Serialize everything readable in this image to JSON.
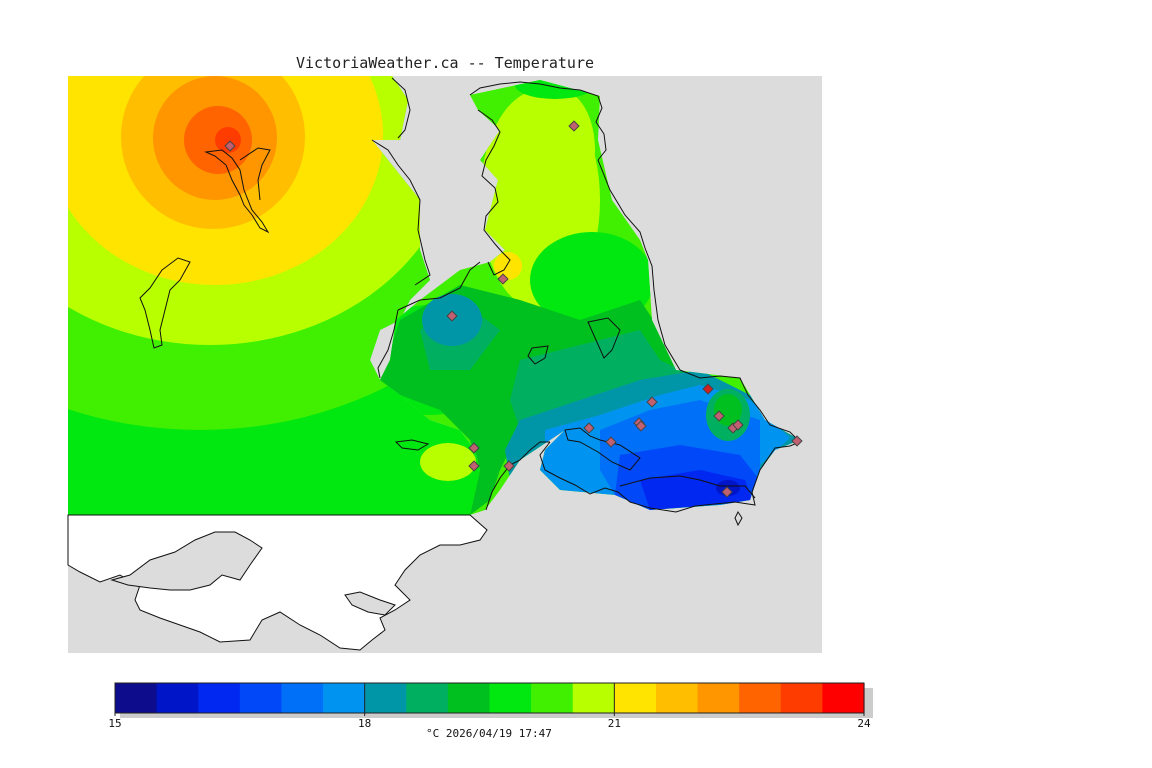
{
  "header": {
    "title": "VictoriaWeather.ca -- Temperature"
  },
  "colors": {
    "background_gray": "#dcdcdc",
    "land_white": "#ffffff",
    "station_marker": "#c06070",
    "station_marker_hot": "#d02020"
  },
  "legend": {
    "scale_min": 15,
    "scale_max": 24,
    "tick_labels": [
      "15",
      "18",
      "21",
      "24"
    ],
    "tick_values": [
      15,
      18,
      21,
      24
    ],
    "footer": "°C  2026/04/19 17:47",
    "color_bands": [
      "#0c0c8c",
      "#0014c8",
      "#0028f0",
      "#0048f8",
      "#0070f8",
      "#0094f0",
      "#0096a8",
      "#00b060",
      "#00c020",
      "#00e810",
      "#40f000",
      "#b8ff00",
      "#ffe400",
      "#ffbe00",
      "#ff9600",
      "#ff6400",
      "#ff3c00",
      "#ff0000"
    ]
  },
  "map": {
    "field_colors": {
      "c23": "#ff6400",
      "c22_5": "#ff9600",
      "c22": "#ffbe00",
      "c21_5": "#ffe400",
      "c21": "#b8ff00",
      "c20_5": "#40f000",
      "c20": "#00e810",
      "c19_5": "#00c020",
      "c19": "#00b060",
      "c18_5": "#0096a8",
      "c18": "#0094f0",
      "c17_5": "#0070f8",
      "c17": "#0048f8",
      "c16_5": "#0028f0"
    }
  }
}
